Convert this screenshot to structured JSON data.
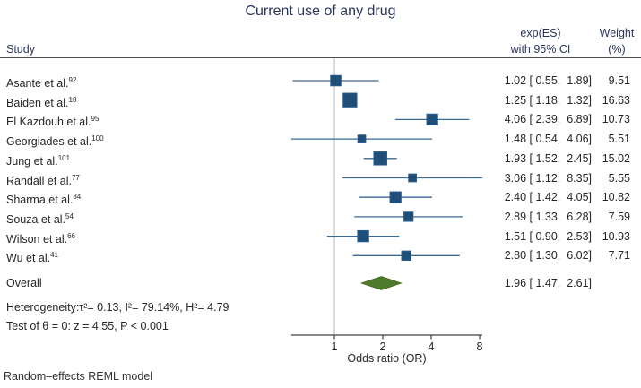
{
  "title": "Current use of any drug",
  "header": {
    "study": "Study",
    "es_line1": "exp(ES)",
    "es_line2": "with 95% CI",
    "weight_line1": "Weight",
    "weight_line2": "(%)"
  },
  "stats": {
    "heterogeneity": "Heterogeneity:τ²= 0.13, I²= 79.14%, H²= 4.79",
    "test": "Test of θ = 0: z = 4.55, P < 0.001"
  },
  "footer": "Random–effects REML model",
  "chart_data": {
    "type": "forest",
    "title": "Current use of any drug",
    "x_axis": {
      "label": "Odds ratio (OR)",
      "scale": "log2",
      "ticks": [
        1,
        2,
        4,
        8
      ],
      "range": [
        0.5,
        8.5
      ]
    },
    "reference_line": 1,
    "legend": "none",
    "colors": {
      "square": "#1f4e79",
      "square_edge": "#2e6090",
      "ci_line": "#3a6a96",
      "diamond": "#4e7a2b",
      "diamond_edge": "#43691f",
      "ref_line": "#c4c4c4",
      "axis": "#404040",
      "heading_text": "#27365b",
      "body_text": "#262626"
    },
    "studies": [
      {
        "label": "Asante et al.",
        "ref": "92",
        "es": 1.02,
        "lo": 0.55,
        "hi": 1.89,
        "weight": 9.51,
        "es_label": "1.02 [ 0.55,  1.89]",
        "weight_label": "9.51"
      },
      {
        "label": "Baiden et al.",
        "ref": "18",
        "es": 1.25,
        "lo": 1.18,
        "hi": 1.32,
        "weight": 16.63,
        "es_label": "1.25 [ 1.18,  1.32]",
        "weight_label": "16.63"
      },
      {
        "label": "El Kazdouh et al.",
        "ref": "95",
        "es": 4.06,
        "lo": 2.39,
        "hi": 6.89,
        "weight": 10.73,
        "es_label": "4.06 [ 2.39,  6.89]",
        "weight_label": "10.73"
      },
      {
        "label": "Georgiades et al.",
        "ref": "100",
        "es": 1.48,
        "lo": 0.54,
        "hi": 4.06,
        "weight": 5.51,
        "es_label": "1.48 [ 0.54,  4.06]",
        "weight_label": "5.51"
      },
      {
        "label": "Jung et al.",
        "ref": "101",
        "es": 1.93,
        "lo": 1.52,
        "hi": 2.45,
        "weight": 15.02,
        "es_label": "1.93 [ 1.52,  2.45]",
        "weight_label": "15.02"
      },
      {
        "label": "Randall et al.",
        "ref": "77",
        "es": 3.06,
        "lo": 1.12,
        "hi": 8.35,
        "weight": 5.55,
        "es_label": "3.06 [ 1.12,  8.35]",
        "weight_label": "5.55"
      },
      {
        "label": "Sharma et al.",
        "ref": "84",
        "es": 2.4,
        "lo": 1.42,
        "hi": 4.05,
        "weight": 10.82,
        "es_label": "2.40 [ 1.42,  4.05]",
        "weight_label": "10.82"
      },
      {
        "label": "Souza et al.",
        "ref": "54",
        "es": 2.89,
        "lo": 1.33,
        "hi": 6.28,
        "weight": 7.59,
        "es_label": "2.89 [ 1.33,  6.28]",
        "weight_label": "7.59"
      },
      {
        "label": "Wilson et al.",
        "ref": "66",
        "es": 1.51,
        "lo": 0.9,
        "hi": 2.53,
        "weight": 10.93,
        "es_label": "1.51 [ 0.90,  2.53]",
        "weight_label": "10.93"
      },
      {
        "label": "Wu et al.",
        "ref": "41",
        "es": 2.8,
        "lo": 1.3,
        "hi": 6.02,
        "weight": 7.71,
        "es_label": "2.80 [ 1.30,  6.02]",
        "weight_label": "7.71"
      }
    ],
    "overall": {
      "label": "Overall",
      "es": 1.96,
      "lo": 1.47,
      "hi": 2.61,
      "es_label": "1.96 [ 1.47,  2.61]"
    }
  }
}
